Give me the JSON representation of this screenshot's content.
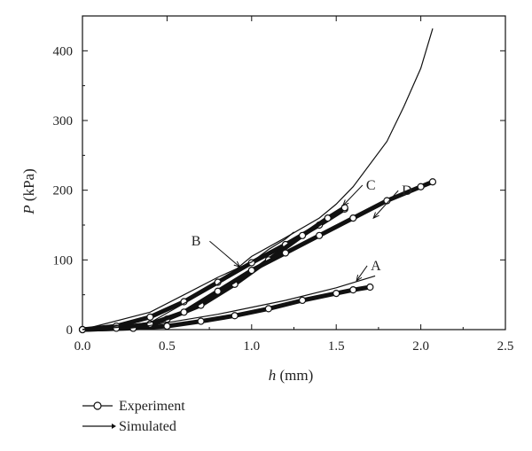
{
  "chart_data": {
    "type": "line",
    "xlabel_var": "h",
    "xlabel_unit": " (mm)",
    "ylabel_var": "P",
    "ylabel_unit": " (kPa)",
    "xlim": [
      0,
      2.5
    ],
    "ylim": [
      0,
      450
    ],
    "xticks": [
      "0.0",
      "0.5",
      "1.0",
      "1.5",
      "2.0",
      "2.5"
    ],
    "xtick_values": [
      0,
      0.5,
      1.0,
      1.5,
      2.0,
      2.5
    ],
    "yticks": [
      "0",
      "100",
      "200",
      "300",
      "400"
    ],
    "ytick_values": [
      0,
      100,
      200,
      300,
      400
    ],
    "grid": false,
    "legend": {
      "placement": "bottom-left",
      "items": [
        {
          "label": "Experiment",
          "marker": "open-circle"
        },
        {
          "label": "Simulated",
          "marker": "line"
        }
      ]
    },
    "series": [
      {
        "kind": "experiment",
        "annotation": "A",
        "x": [
          0.0,
          0.3,
          0.5,
          0.7,
          0.9,
          1.1,
          1.3,
          1.5,
          1.6,
          1.7
        ],
        "y": [
          0,
          2,
          5,
          12,
          20,
          30,
          42,
          52,
          57,
          61
        ]
      },
      {
        "kind": "experiment",
        "annotation": "B",
        "x": [
          0.0,
          0.2,
          0.4,
          0.6,
          0.8,
          1.0,
          1.2,
          1.4,
          1.55
        ],
        "y": [
          0,
          5,
          18,
          40,
          68,
          96,
          122,
          150,
          173
        ]
      },
      {
        "kind": "experiment",
        "annotation": "C",
        "x": [
          0.0,
          0.3,
          0.5,
          0.7,
          0.9,
          1.1,
          1.3,
          1.45,
          1.55
        ],
        "y": [
          0,
          2,
          15,
          35,
          65,
          100,
          135,
          160,
          175
        ]
      },
      {
        "kind": "experiment",
        "annotation": "D",
        "x": [
          0.0,
          0.2,
          0.4,
          0.6,
          0.8,
          1.0,
          1.2,
          1.4,
          1.6,
          1.8,
          2.0,
          2.07
        ],
        "y": [
          0,
          2,
          8,
          25,
          55,
          85,
          110,
          135,
          160,
          185,
          205,
          212
        ]
      },
      {
        "kind": "simulated",
        "x": [
          0.0,
          0.4,
          0.6,
          0.8,
          1.0,
          1.1,
          1.2,
          1.25
        ],
        "y": [
          0,
          25,
          50,
          75,
          97,
          115,
          130,
          140
        ]
      },
      {
        "kind": "simulated",
        "x": [
          0.0,
          0.4,
          0.8,
          1.0,
          1.2,
          1.4,
          1.5,
          1.6,
          1.8,
          1.9,
          2.0,
          2.07
        ],
        "y": [
          0,
          10,
          65,
          105,
          132,
          160,
          180,
          205,
          270,
          320,
          375,
          432
        ]
      },
      {
        "kind": "simulated",
        "x": [
          0.0,
          0.4,
          0.8,
          1.2,
          1.5,
          1.73
        ],
        "y": [
          0,
          6,
          22,
          42,
          60,
          77
        ]
      }
    ],
    "annotations": [
      {
        "label": "A",
        "point": [
          1.62,
          70
        ]
      },
      {
        "label": "B",
        "point": [
          0.93,
          90
        ]
      },
      {
        "label": "C",
        "point": [
          1.54,
          178
        ]
      },
      {
        "label": "D",
        "point": [
          1.72,
          160
        ]
      }
    ]
  }
}
